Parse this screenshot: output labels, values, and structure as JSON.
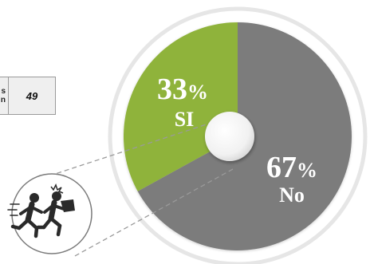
{
  "table": {
    "label_line1": "s",
    "label_line2": "n",
    "value": "49"
  },
  "chart_data": {
    "type": "pie",
    "categories": [
      "SI",
      "No"
    ],
    "values": [
      33,
      67
    ],
    "labels": [
      {
        "percent": "33",
        "symbol": "%",
        "name": "SI"
      },
      {
        "percent": "67",
        "symbol": "%",
        "name": "No"
      }
    ],
    "colors": [
      "#8fb33a",
      "#7b7b7b"
    ],
    "title": "",
    "legend": "none"
  },
  "icon": "running-thief-icon"
}
